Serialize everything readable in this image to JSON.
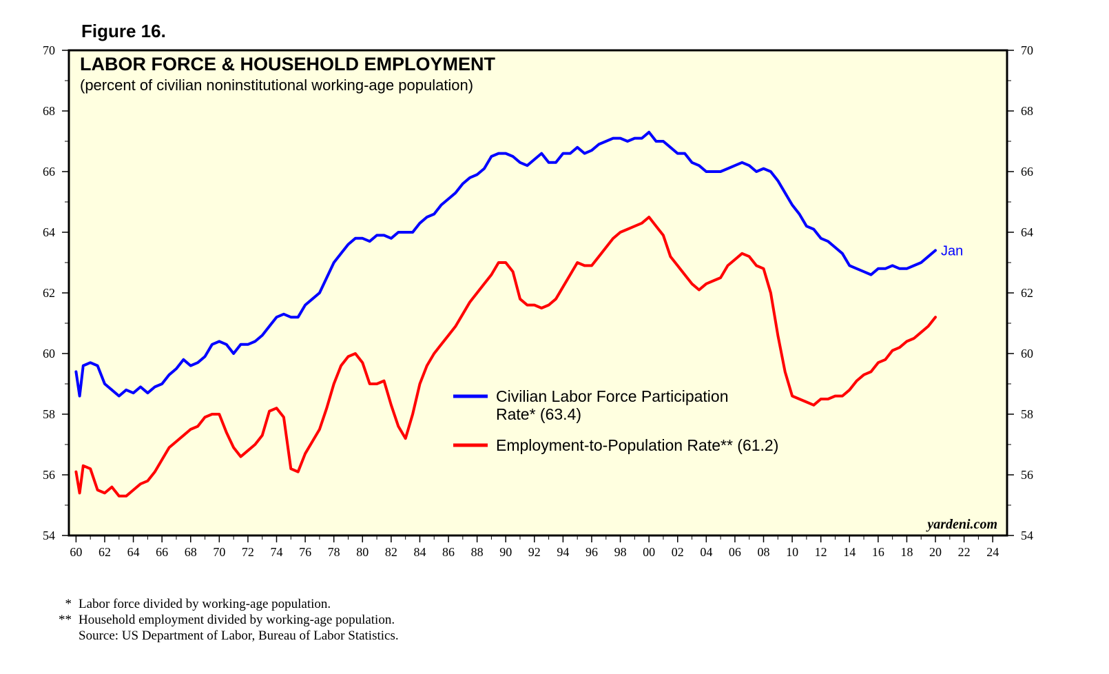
{
  "figure_label": "Figure 16.",
  "source_credit": "yardeni.com",
  "footnotes": [
    {
      "mark": "*",
      "text": "Labor force divided by working-age population."
    },
    {
      "mark": "**",
      "text": "Household employment divided by working-age population."
    },
    {
      "mark": "",
      "text": "Source: US Department of Labor, Bureau of Labor Statistics."
    }
  ],
  "colors": {
    "plot_background": "#ffffe0",
    "participation": "#0000ff",
    "employment": "#ff0000"
  },
  "chart_data": {
    "type": "line",
    "title": "LABOR FORCE & HOUSEHOLD EMPLOYMENT",
    "subtitle": "(percent of civilian noninstitutional working-age population)",
    "xlim": [
      1959.5,
      2025
    ],
    "ylim": [
      54,
      70
    ],
    "y_ticks": [
      54,
      56,
      58,
      60,
      62,
      64,
      66,
      68,
      70
    ],
    "x_ticks": [
      1960,
      1962,
      1964,
      1966,
      1968,
      1970,
      1972,
      1974,
      1976,
      1978,
      1980,
      1982,
      1984,
      1986,
      1988,
      1990,
      1992,
      1994,
      1996,
      1998,
      2000,
      2002,
      2004,
      2006,
      2008,
      2010,
      2012,
      2014,
      2016,
      2018,
      2020,
      2022,
      2024
    ],
    "x_tick_labels": [
      "60",
      "62",
      "64",
      "66",
      "68",
      "70",
      "72",
      "74",
      "76",
      "78",
      "80",
      "82",
      "84",
      "86",
      "88",
      "90",
      "92",
      "94",
      "96",
      "98",
      "00",
      "02",
      "04",
      "06",
      "08",
      "10",
      "12",
      "14",
      "16",
      "18",
      "20",
      "22",
      "24"
    ],
    "grid": false,
    "legend_position": "center-right",
    "end_label": "Jan",
    "series": [
      {
        "name": "Civilian Labor Force Participation Rate* (63.4)",
        "legend_lines": [
          "Civilian Labor Force Participation",
          "Rate* (63.4)"
        ],
        "color": "#0000ff",
        "points": [
          [
            1960,
            59.4
          ],
          [
            1960.25,
            58.6
          ],
          [
            1960.5,
            59.6
          ],
          [
            1961,
            59.7
          ],
          [
            1961.5,
            59.6
          ],
          [
            1962,
            59.0
          ],
          [
            1962.5,
            58.8
          ],
          [
            1963,
            58.6
          ],
          [
            1963.5,
            58.8
          ],
          [
            1964,
            58.7
          ],
          [
            1964.5,
            58.9
          ],
          [
            1965,
            58.7
          ],
          [
            1965.5,
            58.9
          ],
          [
            1966,
            59.0
          ],
          [
            1966.5,
            59.3
          ],
          [
            1967,
            59.5
          ],
          [
            1967.5,
            59.8
          ],
          [
            1968,
            59.6
          ],
          [
            1968.5,
            59.7
          ],
          [
            1969,
            59.9
          ],
          [
            1969.5,
            60.3
          ],
          [
            1970,
            60.4
          ],
          [
            1970.5,
            60.3
          ],
          [
            1971,
            60.0
          ],
          [
            1971.5,
            60.3
          ],
          [
            1972,
            60.3
          ],
          [
            1972.5,
            60.4
          ],
          [
            1973,
            60.6
          ],
          [
            1973.5,
            60.9
          ],
          [
            1974,
            61.2
          ],
          [
            1974.5,
            61.3
          ],
          [
            1975,
            61.2
          ],
          [
            1975.5,
            61.2
          ],
          [
            1976,
            61.6
          ],
          [
            1976.5,
            61.8
          ],
          [
            1977,
            62.0
          ],
          [
            1977.5,
            62.5
          ],
          [
            1978,
            63.0
          ],
          [
            1978.5,
            63.3
          ],
          [
            1979,
            63.6
          ],
          [
            1979.5,
            63.8
          ],
          [
            1980,
            63.8
          ],
          [
            1980.5,
            63.7
          ],
          [
            1981,
            63.9
          ],
          [
            1981.5,
            63.9
          ],
          [
            1982,
            63.8
          ],
          [
            1982.5,
            64.0
          ],
          [
            1983,
            64.0
          ],
          [
            1983.5,
            64.0
          ],
          [
            1984,
            64.3
          ],
          [
            1984.5,
            64.5
          ],
          [
            1985,
            64.6
          ],
          [
            1985.5,
            64.9
          ],
          [
            1986,
            65.1
          ],
          [
            1986.5,
            65.3
          ],
          [
            1987,
            65.6
          ],
          [
            1987.5,
            65.8
          ],
          [
            1988,
            65.9
          ],
          [
            1988.5,
            66.1
          ],
          [
            1989,
            66.5
          ],
          [
            1989.5,
            66.6
          ],
          [
            1990,
            66.6
          ],
          [
            1990.5,
            66.5
          ],
          [
            1991,
            66.3
          ],
          [
            1991.5,
            66.2
          ],
          [
            1992,
            66.4
          ],
          [
            1992.5,
            66.6
          ],
          [
            1993,
            66.3
          ],
          [
            1993.5,
            66.3
          ],
          [
            1994,
            66.6
          ],
          [
            1994.5,
            66.6
          ],
          [
            1995,
            66.8
          ],
          [
            1995.5,
            66.6
          ],
          [
            1996,
            66.7
          ],
          [
            1996.5,
            66.9
          ],
          [
            1997,
            67.0
          ],
          [
            1997.5,
            67.1
          ],
          [
            1998,
            67.1
          ],
          [
            1998.5,
            67.0
          ],
          [
            1999,
            67.1
          ],
          [
            1999.5,
            67.1
          ],
          [
            2000,
            67.3
          ],
          [
            2000.5,
            67.0
          ],
          [
            2001,
            67.0
          ],
          [
            2001.5,
            66.8
          ],
          [
            2002,
            66.6
          ],
          [
            2002.5,
            66.6
          ],
          [
            2003,
            66.3
          ],
          [
            2003.5,
            66.2
          ],
          [
            2004,
            66.0
          ],
          [
            2004.5,
            66.0
          ],
          [
            2005,
            66.0
          ],
          [
            2005.5,
            66.1
          ],
          [
            2006,
            66.2
          ],
          [
            2006.5,
            66.3
          ],
          [
            2007,
            66.2
          ],
          [
            2007.5,
            66.0
          ],
          [
            2008,
            66.1
          ],
          [
            2008.5,
            66.0
          ],
          [
            2009,
            65.7
          ],
          [
            2009.5,
            65.3
          ],
          [
            2010,
            64.9
          ],
          [
            2010.5,
            64.6
          ],
          [
            2011,
            64.2
          ],
          [
            2011.5,
            64.1
          ],
          [
            2012,
            63.8
          ],
          [
            2012.5,
            63.7
          ],
          [
            2013,
            63.5
          ],
          [
            2013.5,
            63.3
          ],
          [
            2014,
            62.9
          ],
          [
            2014.5,
            62.8
          ],
          [
            2015,
            62.7
          ],
          [
            2015.5,
            62.6
          ],
          [
            2016,
            62.8
          ],
          [
            2016.5,
            62.8
          ],
          [
            2017,
            62.9
          ],
          [
            2017.5,
            62.8
          ],
          [
            2018,
            62.8
          ],
          [
            2018.5,
            62.9
          ],
          [
            2019,
            63.0
          ],
          [
            2019.5,
            63.2
          ],
          [
            2020,
            63.4
          ]
        ]
      },
      {
        "name": "Employment-to-Population Rate** (61.2)",
        "legend_lines": [
          "Employment-to-Population Rate** (61.2)"
        ],
        "color": "#ff0000",
        "points": [
          [
            1960,
            56.1
          ],
          [
            1960.25,
            55.4
          ],
          [
            1960.5,
            56.3
          ],
          [
            1961,
            56.2
          ],
          [
            1961.5,
            55.5
          ],
          [
            1962,
            55.4
          ],
          [
            1962.5,
            55.6
          ],
          [
            1963,
            55.3
          ],
          [
            1963.5,
            55.3
          ],
          [
            1964,
            55.5
          ],
          [
            1964.5,
            55.7
          ],
          [
            1965,
            55.8
          ],
          [
            1965.5,
            56.1
          ],
          [
            1966,
            56.5
          ],
          [
            1966.5,
            56.9
          ],
          [
            1967,
            57.1
          ],
          [
            1967.5,
            57.3
          ],
          [
            1968,
            57.5
          ],
          [
            1968.5,
            57.6
          ],
          [
            1969,
            57.9
          ],
          [
            1969.5,
            58.0
          ],
          [
            1970,
            58.0
          ],
          [
            1970.5,
            57.4
          ],
          [
            1971,
            56.9
          ],
          [
            1971.5,
            56.6
          ],
          [
            1972,
            56.8
          ],
          [
            1972.5,
            57.0
          ],
          [
            1973,
            57.3
          ],
          [
            1973.5,
            58.1
          ],
          [
            1974,
            58.2
          ],
          [
            1974.5,
            57.9
          ],
          [
            1975,
            56.2
          ],
          [
            1975.5,
            56.1
          ],
          [
            1976,
            56.7
          ],
          [
            1976.5,
            57.1
          ],
          [
            1977,
            57.5
          ],
          [
            1977.5,
            58.2
          ],
          [
            1978,
            59.0
          ],
          [
            1978.5,
            59.6
          ],
          [
            1979,
            59.9
          ],
          [
            1979.5,
            60.0
          ],
          [
            1980,
            59.7
          ],
          [
            1980.5,
            59.0
          ],
          [
            1981,
            59.0
          ],
          [
            1981.5,
            59.1
          ],
          [
            1982,
            58.3
          ],
          [
            1982.5,
            57.6
          ],
          [
            1983,
            57.2
          ],
          [
            1983.5,
            58.0
          ],
          [
            1984,
            59.0
          ],
          [
            1984.5,
            59.6
          ],
          [
            1985,
            60.0
          ],
          [
            1985.5,
            60.3
          ],
          [
            1986,
            60.6
          ],
          [
            1986.5,
            60.9
          ],
          [
            1987,
            61.3
          ],
          [
            1987.5,
            61.7
          ],
          [
            1988,
            62.0
          ],
          [
            1988.5,
            62.3
          ],
          [
            1989,
            62.6
          ],
          [
            1989.5,
            63.0
          ],
          [
            1990,
            63.0
          ],
          [
            1990.5,
            62.7
          ],
          [
            1991,
            61.8
          ],
          [
            1991.5,
            61.6
          ],
          [
            1992,
            61.6
          ],
          [
            1992.5,
            61.5
          ],
          [
            1993,
            61.6
          ],
          [
            1993.5,
            61.8
          ],
          [
            1994,
            62.2
          ],
          [
            1994.5,
            62.6
          ],
          [
            1995,
            63.0
          ],
          [
            1995.5,
            62.9
          ],
          [
            1996,
            62.9
          ],
          [
            1996.5,
            63.2
          ],
          [
            1997,
            63.5
          ],
          [
            1997.5,
            63.8
          ],
          [
            1998,
            64.0
          ],
          [
            1998.5,
            64.1
          ],
          [
            1999,
            64.2
          ],
          [
            1999.5,
            64.3
          ],
          [
            2000,
            64.5
          ],
          [
            2000.5,
            64.2
          ],
          [
            2001,
            63.9
          ],
          [
            2001.5,
            63.2
          ],
          [
            2002,
            62.9
          ],
          [
            2002.5,
            62.6
          ],
          [
            2003,
            62.3
          ],
          [
            2003.5,
            62.1
          ],
          [
            2004,
            62.3
          ],
          [
            2004.5,
            62.4
          ],
          [
            2005,
            62.5
          ],
          [
            2005.5,
            62.9
          ],
          [
            2006,
            63.1
          ],
          [
            2006.5,
            63.3
          ],
          [
            2007,
            63.2
          ],
          [
            2007.5,
            62.9
          ],
          [
            2008,
            62.8
          ],
          [
            2008.5,
            62.0
          ],
          [
            2009,
            60.6
          ],
          [
            2009.5,
            59.4
          ],
          [
            2010,
            58.6
          ],
          [
            2010.5,
            58.5
          ],
          [
            2011,
            58.4
          ],
          [
            2011.5,
            58.3
          ],
          [
            2012,
            58.5
          ],
          [
            2012.5,
            58.5
          ],
          [
            2013,
            58.6
          ],
          [
            2013.5,
            58.6
          ],
          [
            2014,
            58.8
          ],
          [
            2014.5,
            59.1
          ],
          [
            2015,
            59.3
          ],
          [
            2015.5,
            59.4
          ],
          [
            2016,
            59.7
          ],
          [
            2016.5,
            59.8
          ],
          [
            2017,
            60.1
          ],
          [
            2017.5,
            60.2
          ],
          [
            2018,
            60.4
          ],
          [
            2018.5,
            60.5
          ],
          [
            2019,
            60.7
          ],
          [
            2019.5,
            60.9
          ],
          [
            2020,
            61.2
          ]
        ]
      }
    ]
  }
}
